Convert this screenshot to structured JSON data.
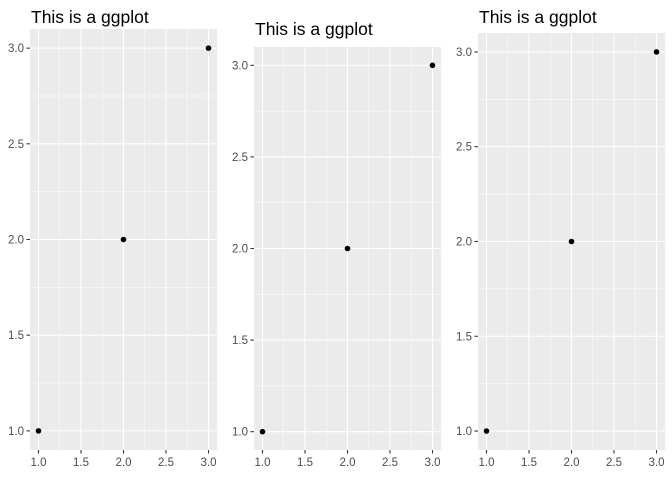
{
  "figure": {
    "background": "#FFFFFF",
    "panel_color": "#EBEBEB",
    "grid_color": "#FFFFFF",
    "point_color": "#000000"
  },
  "chart_data": [
    {
      "type": "scatter",
      "title": "This is a ggplot",
      "xlabel": "",
      "ylabel": "",
      "x": [
        1,
        2,
        3
      ],
      "y": [
        1,
        2,
        3
      ],
      "xlim": [
        0.9,
        3.1
      ],
      "ylim": [
        0.9,
        3.1
      ],
      "x_ticks": [
        "1.0",
        "1.5",
        "2.0",
        "2.5",
        "3.0"
      ],
      "y_ticks": [
        "1.0",
        "1.5",
        "2.0",
        "2.5",
        "3.0"
      ],
      "grid": true,
      "legend": "none"
    },
    {
      "type": "scatter",
      "title": "This is a ggplot",
      "xlabel": "",
      "ylabel": "",
      "x": [
        1,
        2,
        3
      ],
      "y": [
        1,
        2,
        3
      ],
      "xlim": [
        0.9,
        3.1
      ],
      "ylim": [
        0.9,
        3.1
      ],
      "x_ticks": [
        "1.0",
        "1.5",
        "2.0",
        "2.5",
        "3.0"
      ],
      "y_ticks": [
        "1.0",
        "1.5",
        "2.0",
        "2.5",
        "3.0"
      ],
      "grid": true,
      "legend": "none"
    },
    {
      "type": "scatter",
      "title": "This is a ggplot",
      "xlabel": "",
      "ylabel": "",
      "x": [
        1,
        2,
        3
      ],
      "y": [
        1,
        2,
        3
      ],
      "xlim": [
        0.9,
        3.1
      ],
      "ylim": [
        0.9,
        3.1
      ],
      "x_ticks": [
        "1.0",
        "1.5",
        "2.0",
        "2.5",
        "3.0"
      ],
      "y_ticks": [
        "1.0",
        "1.5",
        "2.0",
        "2.5",
        "3.0"
      ],
      "grid": true,
      "legend": "none"
    }
  ]
}
